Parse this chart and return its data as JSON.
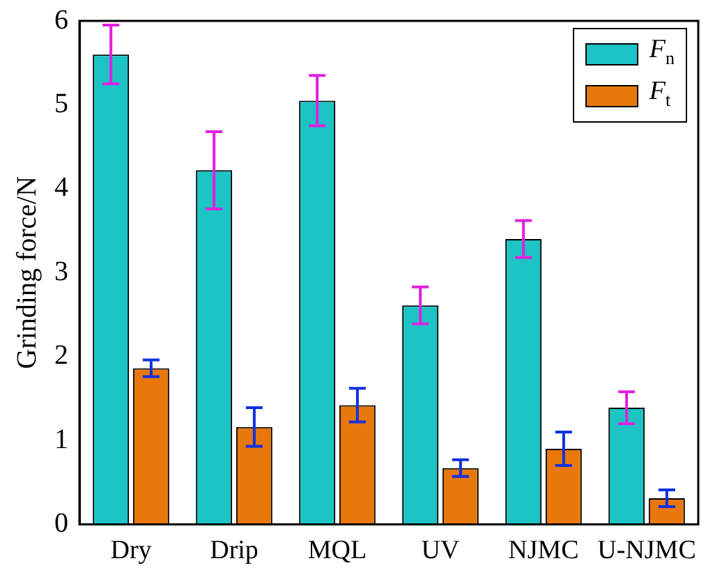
{
  "chart_data": {
    "type": "bar",
    "ylabel": "Grinding force/N",
    "categories": [
      "Dry",
      "Drip",
      "MQL",
      "UV",
      "NJMC",
      "U-NJMC"
    ],
    "series": [
      {
        "name": "F$_{n}$",
        "color": "#1cc4c4",
        "values": [
          5.6,
          4.22,
          5.05,
          2.61,
          3.4,
          1.39
        ],
        "errors": [
          0.35,
          0.46,
          0.3,
          0.22,
          0.22,
          0.19
        ]
      },
      {
        "name": "F$_{t}$",
        "color": "#e8780c",
        "values": [
          1.86,
          1.16,
          1.42,
          0.67,
          0.9,
          0.31
        ],
        "errors": [
          0.1,
          0.23,
          0.2,
          0.1,
          0.2,
          0.1
        ]
      }
    ],
    "ylim": [
      0,
      6
    ],
    "yticks": [
      0,
      1,
      2,
      3,
      4,
      5,
      6
    ],
    "grid": false,
    "legend": "top right"
  }
}
